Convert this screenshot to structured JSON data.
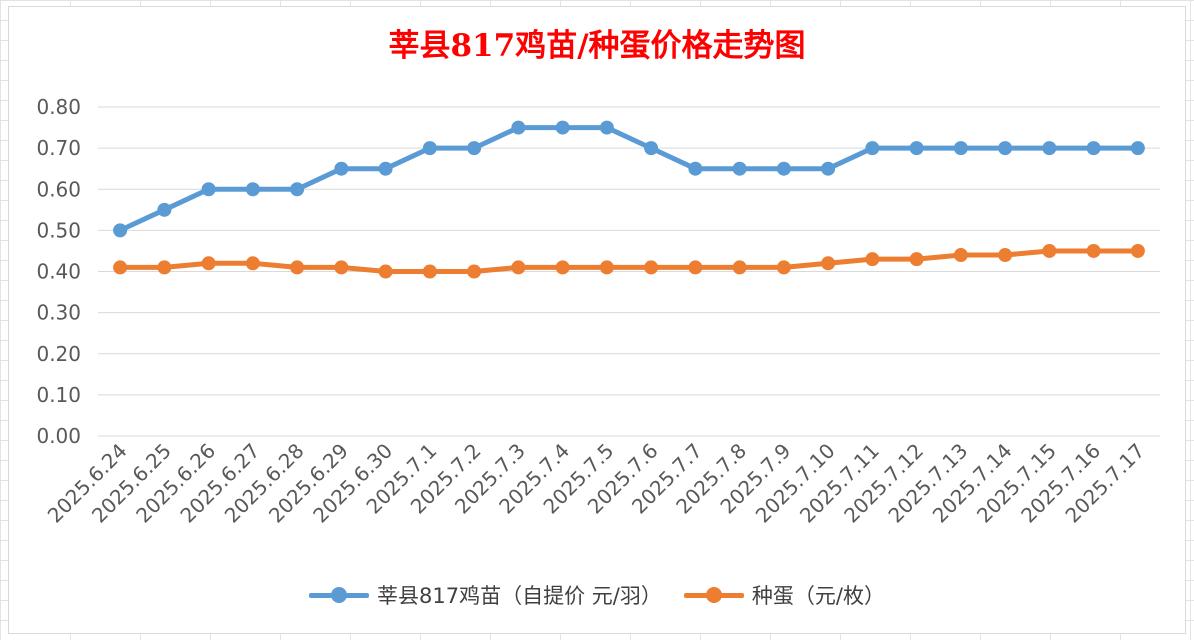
{
  "chart_data": {
    "type": "line",
    "title": "莘县817鸡苗/种蛋价格走势图",
    "xlabel": "",
    "ylabel": "",
    "categories": [
      "2025.6.24",
      "2025.6.25",
      "2025.6.26",
      "2025.6.27",
      "2025.6.28",
      "2025.6.29",
      "2025.6.30",
      "2025.7.1",
      "2025.7.2",
      "2025.7.3",
      "2025.7.4",
      "2025.7.5",
      "2025.7.6",
      "2025.7.7",
      "2025.7.8",
      "2025.7.9",
      "2025.7.10",
      "2025.7.11",
      "2025.7.12",
      "2025.7.13",
      "2025.7.14",
      "2025.7.15",
      "2025.7.16",
      "2025.7.17"
    ],
    "series": [
      {
        "name": "莘县817鸡苗（自提价 元/羽）",
        "color": "#5b9bd5",
        "values": [
          0.5,
          0.55,
          0.6,
          0.6,
          0.6,
          0.65,
          0.65,
          0.7,
          0.7,
          0.75,
          0.75,
          0.75,
          0.7,
          0.65,
          0.65,
          0.65,
          0.65,
          0.7,
          0.7,
          0.7,
          0.7,
          0.7,
          0.7,
          0.7
        ]
      },
      {
        "name": "种蛋（元/枚）",
        "color": "#ed7d31",
        "values": [
          0.41,
          0.41,
          0.42,
          0.42,
          0.41,
          0.41,
          0.4,
          0.4,
          0.4,
          0.41,
          0.41,
          0.41,
          0.41,
          0.41,
          0.41,
          0.41,
          0.42,
          0.43,
          0.43,
          0.44,
          0.44,
          0.45,
          0.45,
          0.45
        ]
      }
    ],
    "ylim": [
      0,
      0.8
    ],
    "yticks": [
      "0.00",
      "0.10",
      "0.20",
      "0.30",
      "0.40",
      "0.50",
      "0.60",
      "0.70",
      "0.80"
    ],
    "title_color": "#ff0000",
    "grid": true,
    "legend": "bottom"
  }
}
